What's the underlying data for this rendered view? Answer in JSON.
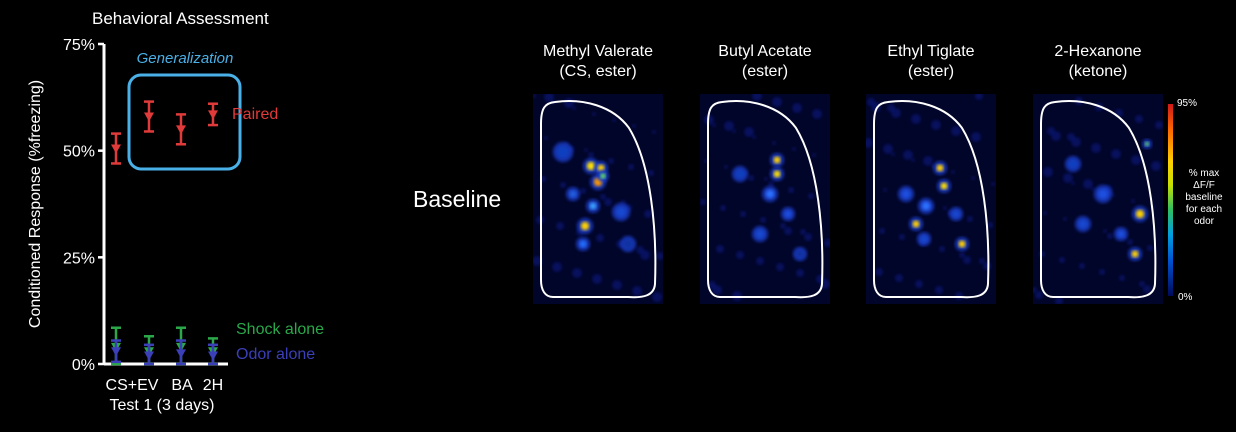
{
  "header": {
    "title": "Behavioral Assessment"
  },
  "chart_data": {
    "type": "scatter",
    "ylabel": "Conditioned Response (%freezing)",
    "ylim": [
      0,
      75
    ],
    "yticks": [
      "0%",
      "25%",
      "50%",
      "75%"
    ],
    "ytick_values": [
      0,
      25,
      50,
      75
    ],
    "categories": [
      "CS+EV",
      "BA",
      "2H"
    ],
    "xlabel": "Test 1 (3 days)",
    "x_positions": {
      "CS": 1,
      "EV": 2,
      "BA": 3,
      "2H": 4
    },
    "series": [
      {
        "name": "Paired",
        "color": "#e03a3a",
        "points": [
          {
            "x": 1,
            "y": 50.5,
            "err": 3.5
          },
          {
            "x": 2,
            "y": 58.0,
            "err": 3.5
          },
          {
            "x": 3,
            "y": 55.0,
            "err": 3.5
          },
          {
            "x": 4,
            "y": 58.5,
            "err": 2.5
          }
        ]
      },
      {
        "name": "Shock alone",
        "color": "#2aa84a",
        "points": [
          {
            "x": 1,
            "y": 4.0,
            "err": 4.5
          },
          {
            "x": 2,
            "y": 3.0,
            "err": 3.5
          },
          {
            "x": 3,
            "y": 4.0,
            "err": 4.5
          },
          {
            "x": 4,
            "y": 3.0,
            "err": 3.0
          }
        ]
      },
      {
        "name": "Odor alone",
        "color": "#3b3fb8",
        "points": [
          {
            "x": 1,
            "y": 3.0,
            "err": 2.5
          },
          {
            "x": 2,
            "y": 2.0,
            "err": 2.5
          },
          {
            "x": 3,
            "y": 2.5,
            "err": 3.0
          },
          {
            "x": 4,
            "y": 2.0,
            "err": 2.5
          }
        ]
      }
    ],
    "annotations": [
      {
        "text": "Generalization",
        "color": "#4ab0e8",
        "x_from": 2,
        "x_to": 4
      }
    ]
  },
  "imaging": {
    "row_label": "Baseline",
    "panels": [
      {
        "title_line1": "Methyl Valerate",
        "title_line2": "(CS, ester)",
        "spots": [
          [
            58,
            72,
            "#ffe000",
            6
          ],
          [
            68,
            74,
            "#ffd000",
            5
          ],
          [
            65,
            88,
            "#ff9a00",
            6
          ],
          [
            70,
            82,
            "#66e060",
            4
          ],
          [
            52,
            132,
            "#ffd000",
            6
          ],
          [
            60,
            112,
            "#3aa0ff",
            5
          ],
          [
            50,
            150,
            "#2070ff",
            5
          ],
          [
            30,
            58,
            "#1040c0",
            8
          ],
          [
            88,
            118,
            "#1848d0",
            7
          ],
          [
            40,
            100,
            "#2060e0",
            5
          ],
          [
            95,
            150,
            "#1030a0",
            6
          ]
        ]
      },
      {
        "title_line1": "Butyl Acetate",
        "title_line2": "(ester)",
        "spots": [
          [
            77,
            66,
            "#ffd000",
            5
          ],
          [
            77,
            80,
            "#ffe000",
            5
          ],
          [
            70,
            100,
            "#2a70ff",
            6
          ],
          [
            88,
            120,
            "#1a50e0",
            5
          ],
          [
            60,
            140,
            "#1848d0",
            6
          ],
          [
            100,
            160,
            "#1030a0",
            5
          ],
          [
            40,
            80,
            "#1040c0",
            6
          ]
        ]
      },
      {
        "title_line1": "Ethyl Tiglate",
        "title_line2": "(ester)",
        "spots": [
          [
            74,
            74,
            "#ffd000",
            5
          ],
          [
            78,
            92,
            "#ffe000",
            5
          ],
          [
            50,
            130,
            "#ffd000",
            5
          ],
          [
            96,
            150,
            "#ffd000",
            5
          ],
          [
            60,
            112,
            "#2a70ff",
            6
          ],
          [
            40,
            100,
            "#1a50e0",
            6
          ],
          [
            90,
            120,
            "#1848d0",
            5
          ],
          [
            58,
            145,
            "#1848d0",
            5
          ]
        ]
      },
      {
        "title_line1": "2-Hexanone",
        "title_line2": "(ketone)",
        "spots": [
          [
            107,
            120,
            "#ffd000",
            6
          ],
          [
            102,
            160,
            "#ffd000",
            5
          ],
          [
            114,
            50,
            "#66e060",
            3
          ],
          [
            70,
            100,
            "#1a50e0",
            7
          ],
          [
            50,
            130,
            "#1848d0",
            6
          ],
          [
            88,
            140,
            "#1a50e0",
            5
          ],
          [
            40,
            70,
            "#1040c0",
            6
          ]
        ]
      }
    ],
    "colorbar": {
      "max_label": "95%",
      "min_label": "0%",
      "desc_lines": [
        "% max",
        "ΔF/F",
        "baseline",
        "for each",
        "odor"
      ]
    }
  }
}
